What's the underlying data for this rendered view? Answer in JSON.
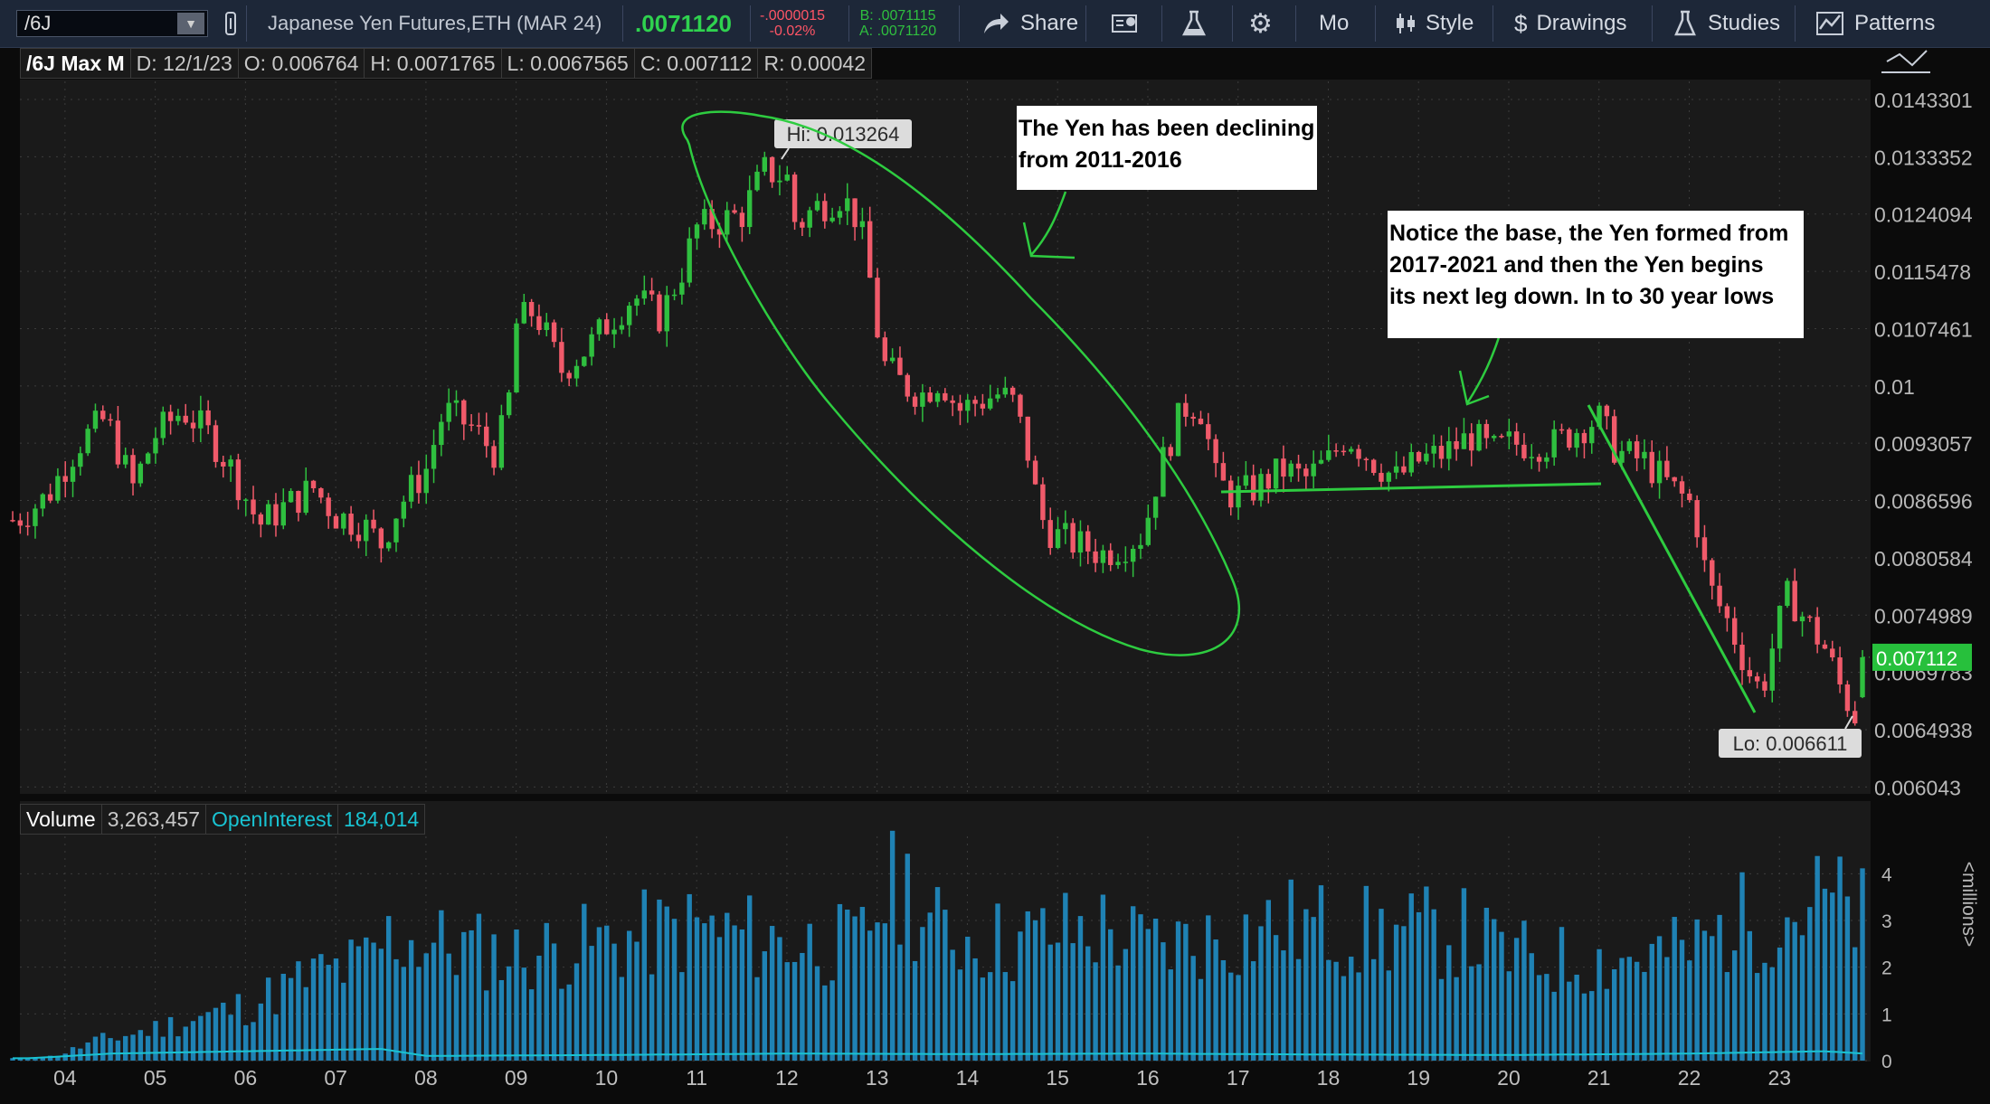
{
  "toolbar": {
    "symbol": "/6J",
    "description": "Japanese Yen Futures,ETH (MAR 24)",
    "last_price": ".0071120",
    "change": "-.0000015",
    "change_pct": "-0.02%",
    "bid": "B: .0071115",
    "ask": "A: .0071120",
    "share_label": "Share",
    "mo_label": "Mo",
    "style_label": "Style",
    "drawings_label": "Drawings",
    "studies_label": "Studies",
    "patterns_label": "Patterns"
  },
  "header": {
    "title": "/6J Max M",
    "date": "D: 12/1/23",
    "open": "O: 0.006764",
    "high": "H: 0.0071765",
    "low": "L: 0.0067565",
    "close": "C: 0.007112",
    "range": "R: 0.00042"
  },
  "lower_header": {
    "volume_label": "Volume",
    "volume_value": "3,263,457",
    "oi_label": "OpenInterest",
    "oi_value": "184,014"
  },
  "annotations": {
    "hi_label": "Hi: 0.013264",
    "lo_label": "Lo: 0.006611",
    "last_tag": "0.007112",
    "callout1_line1": "The Yen has been declining",
    "callout1_line2": "from  2011-2016",
    "callout2_line1": "Notice the base, the Yen formed from",
    "callout2_line2": "2017-2021 and then the Yen begins",
    "callout2_line3": "its next leg down. In to 30 year lows"
  },
  "colors": {
    "up": "#2fbf3f",
    "down": "#f05a6a",
    "volume": "#1f82b4",
    "open_interest": "#19c3d2",
    "annotation": "#2ecc40",
    "background": "#1a1a1a"
  },
  "chart_data": [
    {
      "type": "candlestick",
      "title": "/6J Max M",
      "x_tick_labels": [
        "04",
        "05",
        "06",
        "07",
        "08",
        "09",
        "10",
        "11",
        "12",
        "13",
        "14",
        "15",
        "16",
        "17",
        "18",
        "19",
        "20",
        "21",
        "22",
        "23"
      ],
      "x_range": [
        2003.5,
        2024.0
      ],
      "y_range": [
        0.006043,
        0.0147
      ],
      "y_tick_labels": [
        "0.0143301",
        "0.0133352",
        "0.0124094",
        "0.0115478",
        "0.0107461",
        "0.01",
        "0.0093057",
        "0.0086596",
        "0.0080584",
        "0.0074989",
        "0.0069783",
        "0.0064938",
        "0.006043"
      ],
      "y_ticks": [
        0.0143301,
        0.0133352,
        0.0124094,
        0.0115478,
        0.0107461,
        0.01,
        0.0093057,
        0.0086596,
        0.0080584,
        0.0074989,
        0.0069783,
        0.0064938,
        0.006043
      ],
      "y_scale": "log",
      "grid": true,
      "hi": 0.013264,
      "lo": 0.006611,
      "last": 0.007112,
      "close_anchors": [
        [
          2003.45,
          0.00845
        ],
        [
          2003.8,
          0.0087
        ],
        [
          2004.15,
          0.0093
        ],
        [
          2004.45,
          0.0096
        ],
        [
          2004.75,
          0.0088
        ],
        [
          2005.0,
          0.0094
        ],
        [
          2005.3,
          0.0097
        ],
        [
          2005.6,
          0.0094
        ],
        [
          2005.85,
          0.009
        ],
        [
          2006.15,
          0.0084
        ],
        [
          2006.45,
          0.0086
        ],
        [
          2006.75,
          0.0088
        ],
        [
          2007.0,
          0.0085
        ],
        [
          2007.3,
          0.0084
        ],
        [
          2007.5,
          0.0082
        ],
        [
          2007.7,
          0.0086
        ],
        [
          2008.0,
          0.009
        ],
        [
          2008.2,
          0.0097
        ],
        [
          2008.5,
          0.0095
        ],
        [
          2008.75,
          0.0092
        ],
        [
          2008.9,
          0.0096
        ],
        [
          2009.0,
          0.0108
        ],
        [
          2009.2,
          0.011
        ],
        [
          2009.5,
          0.0102
        ],
        [
          2009.8,
          0.0105
        ],
        [
          2010.0,
          0.0108
        ],
        [
          2010.3,
          0.0112
        ],
        [
          2010.6,
          0.0109
        ],
        [
          2010.85,
          0.0116
        ],
        [
          2011.0,
          0.0122
        ],
        [
          2011.25,
          0.0123
        ],
        [
          2011.5,
          0.0124
        ],
        [
          2011.75,
          0.0131
        ],
        [
          2012.0,
          0.013
        ],
        [
          2012.1,
          0.0122
        ],
        [
          2012.3,
          0.0125
        ],
        [
          2012.6,
          0.0127
        ],
        [
          2012.8,
          0.0123
        ],
        [
          2012.95,
          0.0112
        ],
        [
          2013.05,
          0.0103
        ],
        [
          2013.3,
          0.01
        ],
        [
          2013.5,
          0.0099
        ],
        [
          2013.7,
          0.0101
        ],
        [
          2013.9,
          0.0097
        ],
        [
          2014.1,
          0.0098
        ],
        [
          2014.35,
          0.0099
        ],
        [
          2014.5,
          0.0098
        ],
        [
          2014.65,
          0.0093
        ],
        [
          2014.8,
          0.0085
        ],
        [
          2014.95,
          0.0083
        ],
        [
          2015.2,
          0.0082
        ],
        [
          2015.5,
          0.0081
        ],
        [
          2015.75,
          0.0082
        ],
        [
          2015.95,
          0.0083
        ],
        [
          2016.1,
          0.0089
        ],
        [
          2016.3,
          0.0095
        ],
        [
          2016.45,
          0.0098
        ],
        [
          2016.6,
          0.0097
        ],
        [
          2016.75,
          0.0089
        ],
        [
          2016.95,
          0.0087
        ],
        [
          2017.2,
          0.0088
        ],
        [
          2017.5,
          0.009
        ],
        [
          2017.75,
          0.0089
        ],
        [
          2018.0,
          0.0091
        ],
        [
          2018.2,
          0.0094
        ],
        [
          2018.5,
          0.0091
        ],
        [
          2018.75,
          0.0089
        ],
        [
          2019.0,
          0.0091
        ],
        [
          2019.3,
          0.0092
        ],
        [
          2019.6,
          0.0094
        ],
        [
          2019.8,
          0.0092
        ],
        [
          2020.0,
          0.0093
        ],
        [
          2020.2,
          0.0093
        ],
        [
          2020.5,
          0.0093
        ],
        [
          2020.8,
          0.0095
        ],
        [
          2021.0,
          0.0096
        ],
        [
          2021.2,
          0.0092
        ],
        [
          2021.5,
          0.0091
        ],
        [
          2021.8,
          0.0088
        ],
        [
          2022.05,
          0.0086
        ],
        [
          2022.2,
          0.0078
        ],
        [
          2022.45,
          0.0074
        ],
        [
          2022.65,
          0.007
        ],
        [
          2022.8,
          0.0068
        ],
        [
          2022.95,
          0.0073
        ],
        [
          2023.1,
          0.0077
        ],
        [
          2023.25,
          0.0075
        ],
        [
          2023.5,
          0.0072
        ],
        [
          2023.7,
          0.0068
        ],
        [
          2023.85,
          0.0066
        ],
        [
          2023.95,
          0.0071
        ]
      ]
    },
    {
      "type": "bar",
      "title": "Volume",
      "ylabel": "<millions>",
      "y_range": [
        0,
        4.8
      ],
      "y_ticks": [
        0,
        1,
        2,
        3,
        4
      ],
      "volume_anchors": [
        [
          2003.6,
          0.05
        ],
        [
          2003.9,
          0.1
        ],
        [
          2004.3,
          0.4
        ],
        [
          2005.0,
          0.7
        ],
        [
          2006.0,
          1.2
        ],
        [
          2006.8,
          1.9
        ],
        [
          2007.3,
          2.1
        ],
        [
          2007.6,
          2.7
        ],
        [
          2008.0,
          2.6
        ],
        [
          2009.0,
          2.3
        ],
        [
          2010.0,
          2.6
        ],
        [
          2011.0,
          2.9
        ],
        [
          2012.0,
          2.6
        ],
        [
          2012.8,
          2.5
        ],
        [
          2013.0,
          3.4
        ],
        [
          2013.3,
          3.9
        ],
        [
          2013.6,
          2.9
        ],
        [
          2014.0,
          2.7
        ],
        [
          2014.5,
          2.6
        ],
        [
          2015.0,
          2.8
        ],
        [
          2015.5,
          2.9
        ],
        [
          2016.0,
          2.5
        ],
        [
          2016.8,
          2.7
        ],
        [
          2017.5,
          3.0
        ],
        [
          2018.5,
          2.8
        ],
        [
          2019.5,
          2.8
        ],
        [
          2020.0,
          2.3
        ],
        [
          2020.5,
          2.2
        ],
        [
          2021.0,
          2.2
        ],
        [
          2022.0,
          2.4
        ],
        [
          2022.5,
          3.0
        ],
        [
          2023.0,
          3.2
        ],
        [
          2023.5,
          3.5
        ],
        [
          2023.95,
          3.1
        ]
      ],
      "open_interest_anchors": [
        [
          2003.6,
          0.05
        ],
        [
          2004.5,
          0.15
        ],
        [
          2006.0,
          0.2
        ],
        [
          2007.5,
          0.25
        ],
        [
          2008.0,
          0.1
        ],
        [
          2010.0,
          0.12
        ],
        [
          2012.0,
          0.15
        ],
        [
          2014.0,
          0.14
        ],
        [
          2016.0,
          0.15
        ],
        [
          2018.0,
          0.13
        ],
        [
          2020.0,
          0.12
        ],
        [
          2022.0,
          0.15
        ],
        [
          2023.5,
          0.2
        ],
        [
          2023.95,
          0.15
        ]
      ]
    }
  ]
}
